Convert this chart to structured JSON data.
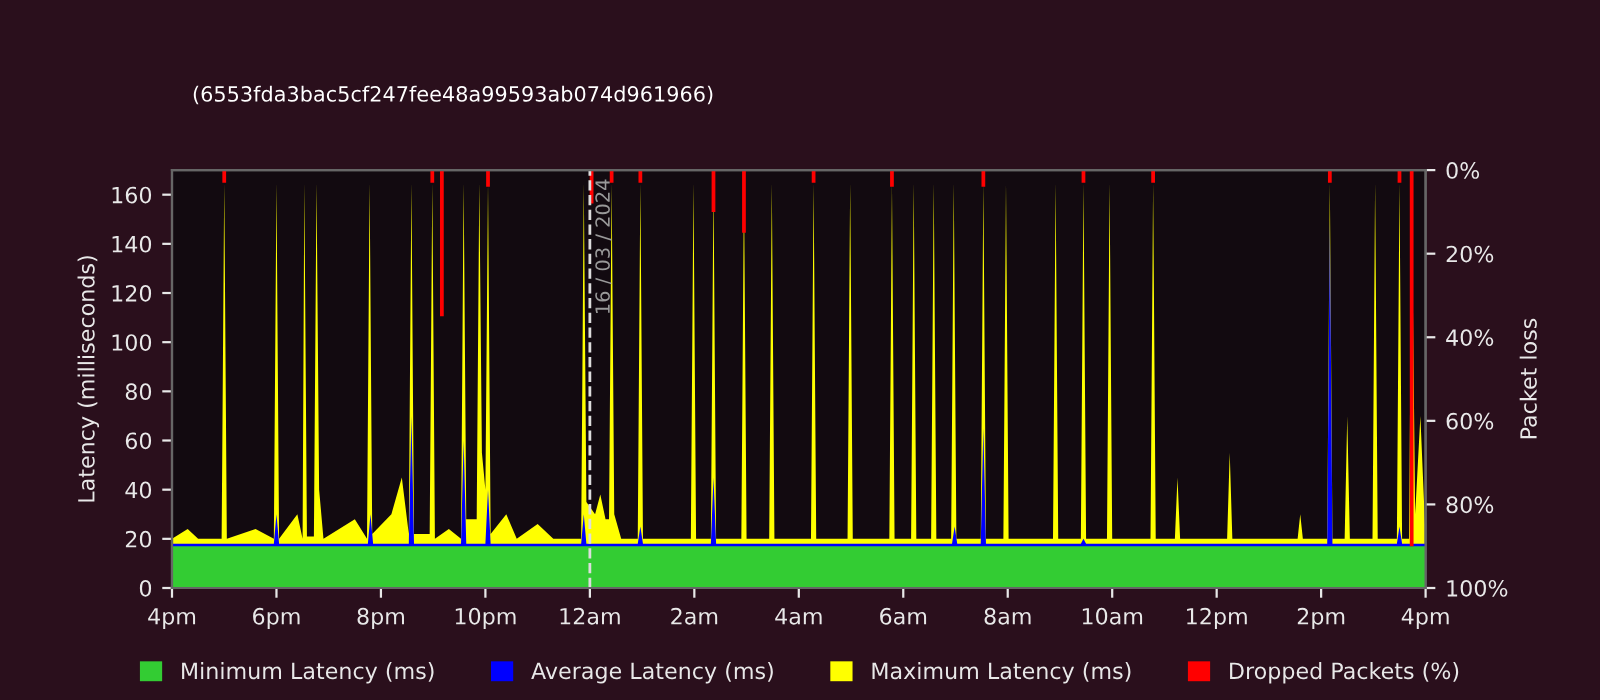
{
  "chart_data": {
    "type": "area",
    "subtitle": "(6553fda3bac5cf247fee48a99593ab074d961966)",
    "ylabel": "Latency (milliseconds)",
    "y2label": "Packet loss",
    "xlim": [
      "2024-03-15T16:00",
      "2024-03-16T16:00"
    ],
    "xticks": [
      {
        "value": "2024-03-15T16:00",
        "label": "4pm"
      },
      {
        "value": "2024-03-15T18:00",
        "label": "6pm"
      },
      {
        "value": "2024-03-15T20:00",
        "label": "8pm"
      },
      {
        "value": "2024-03-15T22:00",
        "label": "10pm"
      },
      {
        "value": "2024-03-16T00:00",
        "label": "12am"
      },
      {
        "value": "2024-03-16T02:00",
        "label": "2am"
      },
      {
        "value": "2024-03-16T04:00",
        "label": "4am"
      },
      {
        "value": "2024-03-16T06:00",
        "label": "6am"
      },
      {
        "value": "2024-03-16T08:00",
        "label": "8am"
      },
      {
        "value": "2024-03-16T10:00",
        "label": "10am"
      },
      {
        "value": "2024-03-16T12:00",
        "label": "12pm"
      },
      {
        "value": "2024-03-16T14:00",
        "label": "2pm"
      },
      {
        "value": "2024-03-16T16:00",
        "label": "4pm"
      }
    ],
    "ylim": [
      0,
      170
    ],
    "yticks": [
      0,
      20,
      40,
      60,
      80,
      100,
      120,
      140,
      160
    ],
    "y2lim": [
      100,
      0
    ],
    "y2ticks": [
      {
        "value": 0,
        "label": "0%"
      },
      {
        "value": 20,
        "label": "20%"
      },
      {
        "value": 40,
        "label": "40%"
      },
      {
        "value": 60,
        "label": "60%"
      },
      {
        "value": 80,
        "label": "80%"
      },
      {
        "value": 100,
        "label": "100%"
      }
    ],
    "legend": "bottom",
    "grid": false,
    "ref_lines": [
      {
        "axis": "x",
        "value": "2024-03-16T00:00",
        "label": "16 / 03 / 2024",
        "color": "#dddddd",
        "line_style": "dashed"
      }
    ],
    "series": [
      {
        "name": "Minimum Latency (ms)",
        "color": "#33cc33",
        "x": [
          "2024-03-15T16:00",
          "2024-03-16T16:00"
        ],
        "values": [
          17,
          17
        ]
      },
      {
        "name": "Average Latency (ms)",
        "color": "#0000ff",
        "x": [
          "2024-03-15T16:00",
          "2024-03-15T17:57",
          "2024-03-15T18:00",
          "2024-03-15T18:03",
          "2024-03-15T19:45",
          "2024-03-15T19:48",
          "2024-03-15T19:51",
          "2024-03-15T20:32",
          "2024-03-15T20:35",
          "2024-03-15T20:38",
          "2024-03-15T21:32",
          "2024-03-15T21:35",
          "2024-03-15T21:38",
          "2024-03-15T22:00",
          "2024-03-15T22:03",
          "2024-03-15T22:06",
          "2024-03-15T23:50",
          "2024-03-15T23:53",
          "2024-03-15T23:56",
          "2024-03-16T00:55",
          "2024-03-16T00:58",
          "2024-03-16T01:01",
          "2024-03-16T02:19",
          "2024-03-16T02:22",
          "2024-03-16T02:25",
          "2024-03-16T06:56",
          "2024-03-16T06:59",
          "2024-03-16T07:02",
          "2024-03-16T07:29",
          "2024-03-16T07:32",
          "2024-03-16T07:35",
          "2024-03-16T09:24",
          "2024-03-16T09:27",
          "2024-03-16T09:30",
          "2024-03-16T14:07",
          "2024-03-16T14:10",
          "2024-03-16T14:13",
          "2024-03-16T15:27",
          "2024-03-16T15:30",
          "2024-03-16T15:33",
          "2024-03-16T16:00"
        ],
        "values": [
          18,
          18,
          30,
          18,
          18,
          30,
          18,
          18,
          70,
          18,
          18,
          60,
          18,
          18,
          40,
          18,
          18,
          30,
          18,
          18,
          25,
          18,
          18,
          45,
          18,
          18,
          25,
          18,
          18,
          65,
          18,
          18,
          20,
          18,
          18,
          150,
          18,
          18,
          25,
          18,
          18
        ]
      },
      {
        "name": "Maximum Latency (ms)",
        "color": "#ffff00",
        "x": [
          "2024-03-15T16:00",
          "2024-03-15T16:18",
          "2024-03-15T16:30",
          "2024-03-15T16:57",
          "2024-03-15T17:00",
          "2024-03-15T17:03",
          "2024-03-15T17:36",
          "2024-03-15T17:57",
          "2024-03-15T18:00",
          "2024-03-15T18:03",
          "2024-03-15T18:24",
          "2024-03-15T18:30",
          "2024-03-15T18:32",
          "2024-03-15T18:35",
          "2024-03-15T18:43",
          "2024-03-15T18:46",
          "2024-03-15T18:49",
          "2024-03-15T18:54",
          "2024-03-15T19:30",
          "2024-03-15T19:44",
          "2024-03-15T19:47",
          "2024-03-15T19:50",
          "2024-03-15T20:12",
          "2024-03-15T20:24",
          "2024-03-15T20:32",
          "2024-03-15T20:35",
          "2024-03-15T20:38",
          "2024-03-15T20:56",
          "2024-03-15T20:59",
          "2024-03-15T21:02",
          "2024-03-15T21:18",
          "2024-03-15T21:32",
          "2024-03-15T21:35",
          "2024-03-15T21:38",
          "2024-03-15T21:50",
          "2024-03-15T21:53",
          "2024-03-15T21:56",
          "2024-03-15T22:00",
          "2024-03-15T22:03",
          "2024-03-15T22:06",
          "2024-03-15T22:24",
          "2024-03-15T22:36",
          "2024-03-15T23:00",
          "2024-03-15T23:18",
          "2024-03-15T23:50",
          "2024-03-15T23:53",
          "2024-03-15T23:56",
          "2024-03-16T00:06",
          "2024-03-16T00:12",
          "2024-03-16T00:18",
          "2024-03-16T00:22",
          "2024-03-16T00:25",
          "2024-03-16T00:28",
          "2024-03-16T00:36",
          "2024-03-16T00:55",
          "2024-03-16T00:58",
          "2024-03-16T01:01",
          "2024-03-16T01:56",
          "2024-03-16T01:59",
          "2024-03-16T02:02",
          "2024-03-16T02:19",
          "2024-03-16T02:22",
          "2024-03-16T02:25",
          "2024-03-16T02:54",
          "2024-03-16T02:57",
          "2024-03-16T03:00",
          "2024-03-16T03:26",
          "2024-03-16T03:29",
          "2024-03-16T03:32",
          "2024-03-16T04:14",
          "2024-03-16T04:17",
          "2024-03-16T04:20",
          "2024-03-16T04:56",
          "2024-03-16T04:59",
          "2024-03-16T05:02",
          "2024-03-16T05:44",
          "2024-03-16T05:47",
          "2024-03-16T05:50",
          "2024-03-16T06:09",
          "2024-03-16T06:12",
          "2024-03-16T06:15",
          "2024-03-16T06:32",
          "2024-03-16T06:35",
          "2024-03-16T06:38",
          "2024-03-16T06:55",
          "2024-03-16T06:58",
          "2024-03-16T07:01",
          "2024-03-16T07:29",
          "2024-03-16T07:32",
          "2024-03-16T07:35",
          "2024-03-16T07:55",
          "2024-03-16T07:58",
          "2024-03-16T08:01",
          "2024-03-16T08:52",
          "2024-03-16T08:55",
          "2024-03-16T08:58",
          "2024-03-16T09:24",
          "2024-03-16T09:27",
          "2024-03-16T09:30",
          "2024-03-16T09:54",
          "2024-03-16T09:57",
          "2024-03-16T10:00",
          "2024-03-16T10:44",
          "2024-03-16T10:47",
          "2024-03-16T10:50",
          "2024-03-16T11:12",
          "2024-03-16T11:15",
          "2024-03-16T11:18",
          "2024-03-16T12:12",
          "2024-03-16T12:15",
          "2024-03-16T12:18",
          "2024-03-16T13:33",
          "2024-03-16T13:36",
          "2024-03-16T13:39",
          "2024-03-16T14:07",
          "2024-03-16T14:10",
          "2024-03-16T14:13",
          "2024-03-16T14:27",
          "2024-03-16T14:30",
          "2024-03-16T14:33",
          "2024-03-16T14:59",
          "2024-03-16T15:02",
          "2024-03-16T15:05",
          "2024-03-16T15:27",
          "2024-03-16T15:30",
          "2024-03-16T15:33",
          "2024-03-16T15:41",
          "2024-03-16T15:44",
          "2024-03-16T15:48",
          "2024-03-16T15:54",
          "2024-03-16T16:00"
        ],
        "values": [
          20,
          24,
          20,
          20,
          165,
          20,
          24,
          20,
          165,
          20,
          30,
          20,
          165,
          21,
          21,
          165,
          40,
          20,
          28,
          20,
          165,
          22,
          30,
          45,
          22,
          165,
          22,
          22,
          165,
          20,
          24,
          20,
          165,
          28,
          28,
          165,
          55,
          40,
          165,
          22,
          30,
          20,
          26,
          20,
          20,
          165,
          35,
          30,
          38,
          28,
          28,
          165,
          30,
          20,
          20,
          165,
          20,
          20,
          165,
          20,
          20,
          165,
          20,
          20,
          165,
          20,
          20,
          165,
          20,
          20,
          165,
          20,
          20,
          165,
          20,
          20,
          165,
          20,
          20,
          165,
          20,
          20,
          165,
          20,
          20,
          165,
          20,
          20,
          165,
          20,
          20,
          165,
          20,
          20,
          165,
          20,
          20,
          165,
          20,
          20,
          165,
          20,
          20,
          165,
          20,
          20,
          45,
          20,
          20,
          55,
          20,
          20,
          30,
          20,
          20,
          165,
          20,
          20,
          70,
          20,
          20,
          165,
          20,
          20,
          165,
          20,
          20,
          165,
          30,
          70,
          20
        ]
      },
      {
        "name": "Dropped Packets (%)",
        "type": "bar",
        "axis": "y2",
        "color": "#ff0000",
        "x": [
          "2024-03-15T17:00",
          "2024-03-15T20:59",
          "2024-03-15T21:10",
          "2024-03-15T22:03",
          "2024-03-16T00:02",
          "2024-03-16T00:25",
          "2024-03-16T00:58",
          "2024-03-16T02:22",
          "2024-03-16T02:57",
          "2024-03-16T04:17",
          "2024-03-16T05:47",
          "2024-03-16T07:32",
          "2024-03-16T09:27",
          "2024-03-16T10:47",
          "2024-03-16T14:10",
          "2024-03-16T15:30",
          "2024-03-16T15:44"
        ],
        "values": [
          3,
          3,
          35,
          4,
          8,
          3,
          3,
          10,
          15,
          3,
          4,
          4,
          3,
          3,
          3,
          3,
          90
        ]
      }
    ]
  }
}
